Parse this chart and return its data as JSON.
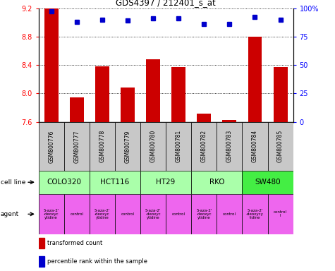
{
  "title": "GDS4397 / 212401_s_at",
  "samples": [
    "GSM800776",
    "GSM800777",
    "GSM800778",
    "GSM800779",
    "GSM800780",
    "GSM800781",
    "GSM800782",
    "GSM800783",
    "GSM800784",
    "GSM800785"
  ],
  "bar_values": [
    9.2,
    7.95,
    8.38,
    8.08,
    8.48,
    8.37,
    7.72,
    7.63,
    8.8,
    8.37
  ],
  "dot_values": [
    97,
    88,
    90,
    89,
    91,
    91,
    86,
    86,
    92,
    90
  ],
  "ylim_left": [
    7.6,
    9.2
  ],
  "ylim_right": [
    0,
    100
  ],
  "yticks_left": [
    7.6,
    8.0,
    8.4,
    8.8,
    9.2
  ],
  "yticks_right": [
    0,
    25,
    50,
    75,
    100
  ],
  "bar_color": "#cc0000",
  "dot_color": "#0000cc",
  "cell_lines": [
    {
      "label": "COLO320",
      "start": 0,
      "end": 2,
      "color": "#aaffaa"
    },
    {
      "label": "HCT116",
      "start": 2,
      "end": 4,
      "color": "#aaffaa"
    },
    {
      "label": "HT29",
      "start": 4,
      "end": 6,
      "color": "#aaffaa"
    },
    {
      "label": "RKO",
      "start": 6,
      "end": 8,
      "color": "#aaffaa"
    },
    {
      "label": "SW480",
      "start": 8,
      "end": 10,
      "color": "#44ee44"
    }
  ],
  "agents": [
    {
      "label": "5-aza-2'\n-deoxyc\nytidine",
      "start": 0,
      "end": 1,
      "color": "#ee66ee"
    },
    {
      "label": "control",
      "start": 1,
      "end": 2,
      "color": "#ee66ee"
    },
    {
      "label": "5-aza-2'\n-deoxyc\nytidine",
      "start": 2,
      "end": 3,
      "color": "#ee66ee"
    },
    {
      "label": "control",
      "start": 3,
      "end": 4,
      "color": "#ee66ee"
    },
    {
      "label": "5-aza-2'\n-deoxyc\nytidine",
      "start": 4,
      "end": 5,
      "color": "#ee66ee"
    },
    {
      "label": "control",
      "start": 5,
      "end": 6,
      "color": "#ee66ee"
    },
    {
      "label": "5-aza-2'\n-deoxyc\nytidine",
      "start": 6,
      "end": 7,
      "color": "#ee66ee"
    },
    {
      "label": "control",
      "start": 7,
      "end": 8,
      "color": "#ee66ee"
    },
    {
      "label": "5-aza-2'\n-deoxycy\ntidine",
      "start": 8,
      "end": 9,
      "color": "#ee66ee"
    },
    {
      "label": "control\nl",
      "start": 9,
      "end": 10,
      "color": "#ee66ee"
    }
  ],
  "legend_red": "transformed count",
  "legend_blue": "percentile rank within the sample",
  "label_cell_line": "cell line",
  "label_agent": "agent",
  "sample_bg": "#c8c8c8"
}
